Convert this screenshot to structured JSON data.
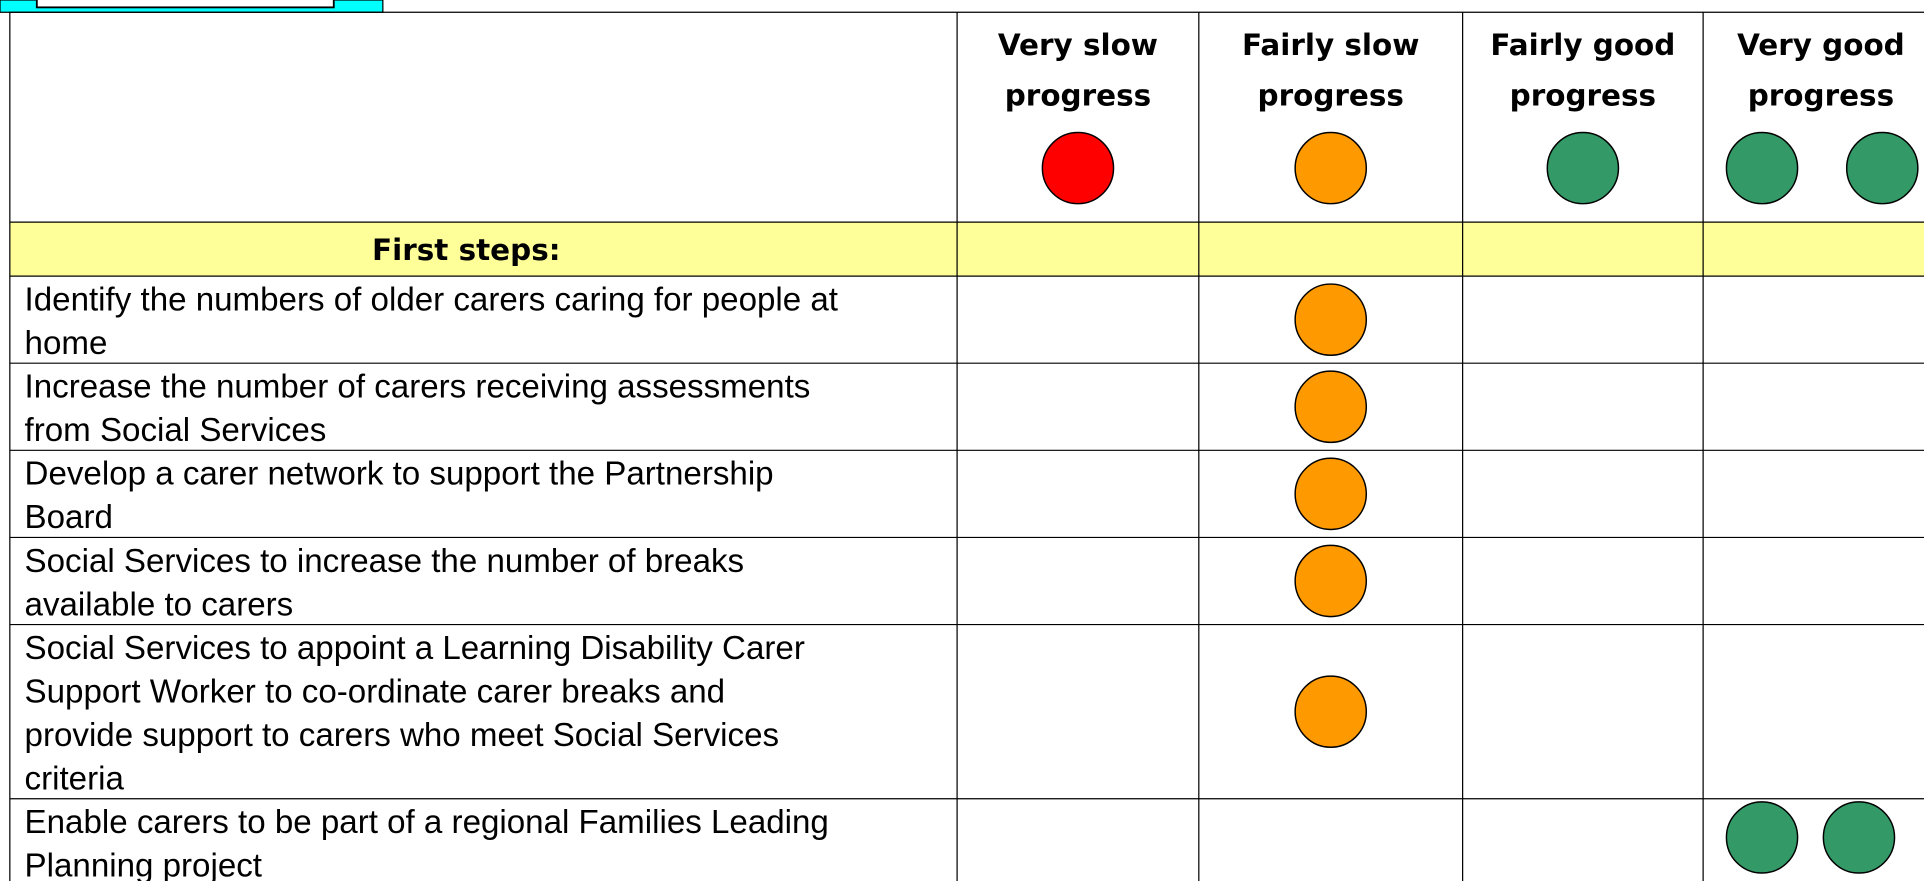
{
  "table": {
    "columns": [
      {
        "lines": [
          "Very slow",
          "progress"
        ],
        "color": "#ff0000",
        "dots": 1
      },
      {
        "lines": [
          "Fairly slow",
          "progress"
        ],
        "color": "#ff9900",
        "dots": 1
      },
      {
        "lines": [
          "Fairly good",
          "progress"
        ],
        "color": "#339966",
        "dots": 1
      },
      {
        "lines": [
          "Very good",
          "progress"
        ],
        "color": "#339966",
        "dots": 2
      }
    ],
    "section": "First steps:",
    "section_color": "#ffff99",
    "rows": [
      {
        "lines": [
          "Identify the numbers of older carers caring for people at",
          "home"
        ],
        "rating": 1
      },
      {
        "lines": [
          "Increase the number of carers receiving assessments",
          "from Social Services"
        ],
        "rating": 1
      },
      {
        "lines": [
          "Develop a carer network to support the Partnership",
          "Board"
        ],
        "rating": 1
      },
      {
        "lines": [
          "Social Services to increase the number of breaks",
          "available to carers"
        ],
        "rating": 1
      },
      {
        "lines": [
          "Social Services to appoint a Learning Disability Carer",
          "Support Worker to co-ordinate carer breaks and",
          "provide support to carers who meet Social Services",
          "criteria"
        ],
        "rating": 1
      },
      {
        "lines": [
          "Enable carers to be part of a regional Families Leading",
          "Planning project"
        ],
        "rating": 3
      }
    ]
  }
}
